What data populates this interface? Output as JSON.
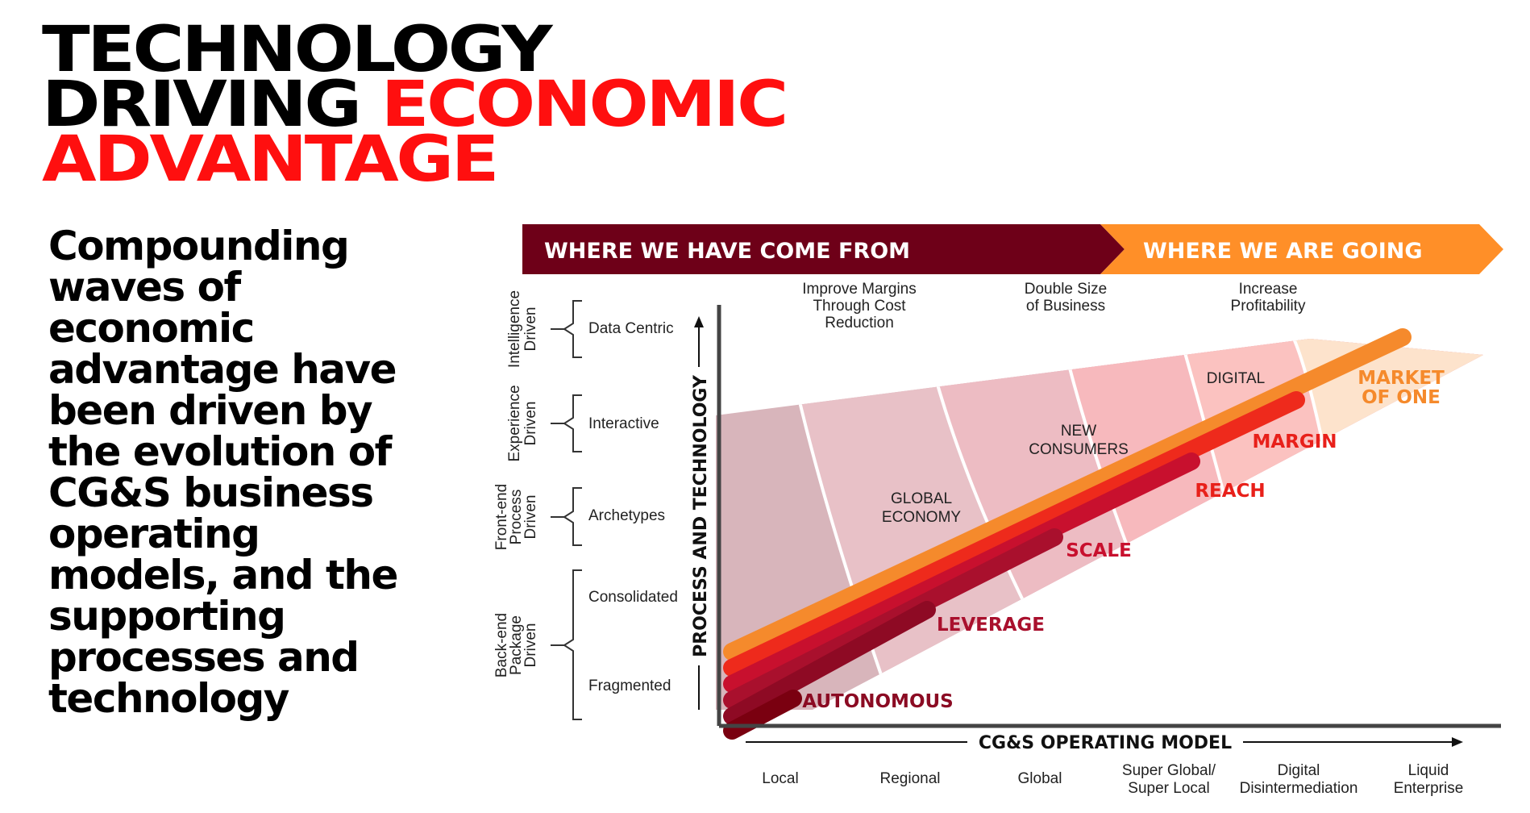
{
  "title": {
    "line1": "TECHNOLOGY",
    "line2a": "DRIVING ",
    "line2b": "ECONOMIC",
    "line3": "ADVANTAGE"
  },
  "intro": "Compounding waves of economic advantage have been driven by the evolution of CG&S business operating models, and the supporting processes and technology",
  "banner": {
    "left": "WHERE WE HAVE COME FROM",
    "right": "WHERE WE ARE GOING"
  },
  "goals": [
    [
      "Improve Margins",
      "Through Cost",
      "Reduction"
    ],
    [
      "Double Size",
      "of Business"
    ],
    [
      "Increase",
      "Profitability"
    ]
  ],
  "y_groups": [
    [
      "Intelligence",
      "Driven"
    ],
    [
      "Experience",
      "Driven"
    ],
    [
      "Front-end",
      "Process",
      "Driven"
    ],
    [
      "Back-end",
      "Package",
      "Driven"
    ]
  ],
  "y_levels": [
    "Data Centric",
    "Interactive",
    "Archetypes",
    "Consolidated",
    "Fragmented"
  ],
  "y_axis_label": "PROCESS AND TECHNOLOGY",
  "x_axis_label": "CG&S OPERATING MODEL",
  "x_categories": [
    [
      "Local"
    ],
    [
      "Regional"
    ],
    [
      "Global"
    ],
    [
      "Super Global/",
      "Super Local"
    ],
    [
      "Digital",
      "Disintermediation"
    ],
    [
      "Liquid",
      "Enterprise"
    ]
  ],
  "era_labels": [
    [
      "GLOBAL",
      "ECONOMY"
    ],
    [
      "NEW",
      "CONSUMERS"
    ],
    [
      "DIGITAL"
    ]
  ],
  "waves": [
    "AUTONOMOUS",
    "LEVERAGE",
    "SCALE",
    "REACH",
    "MARGIN",
    "MARKET",
    "OF ONE"
  ],
  "colors": {
    "title_red": "#ff0f0f",
    "banner_dark": "#6e0018",
    "banner_orange": "#ff8f28",
    "bar_dark": "#7a0010",
    "bar_crimson": "#a9102d",
    "bar_deep_red": "#c8102e",
    "bar_red": "#ee2a1c",
    "bar_orange": "#f58a2c",
    "label_dark": "#8b0b23",
    "label_red": "#c8102e",
    "label_bright_red": "#e8201a",
    "label_orange": "#f58a2c"
  }
}
